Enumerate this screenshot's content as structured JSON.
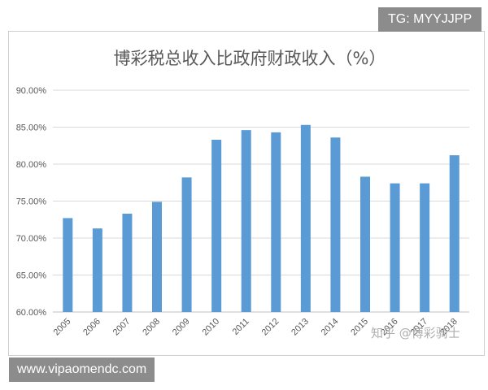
{
  "overlay": {
    "tg_label": "TG: MYYJJPP",
    "url_label": "www.vipaomendc.com",
    "watermark": "知乎 @博彩骑士"
  },
  "chart_data": {
    "type": "bar",
    "title": "博彩税总收入比政府财政收入（%）",
    "xlabel": "",
    "ylabel": "",
    "categories": [
      "2005",
      "2006",
      "2007",
      "2008",
      "2009",
      "2010",
      "2011",
      "2012",
      "2013",
      "2014",
      "2015",
      "2016",
      "2017",
      "2018"
    ],
    "values": [
      72.7,
      71.3,
      73.3,
      74.9,
      78.2,
      83.3,
      84.6,
      84.3,
      85.3,
      83.6,
      78.3,
      77.4,
      77.4,
      81.2
    ],
    "ylim": [
      60,
      90
    ],
    "yticks": [
      "60.00%",
      "65.00%",
      "70.00%",
      "75.00%",
      "80.00%",
      "85.00%",
      "90.00%"
    ],
    "grid": true,
    "legend": "none",
    "bar_color": "#5b9bd5"
  }
}
